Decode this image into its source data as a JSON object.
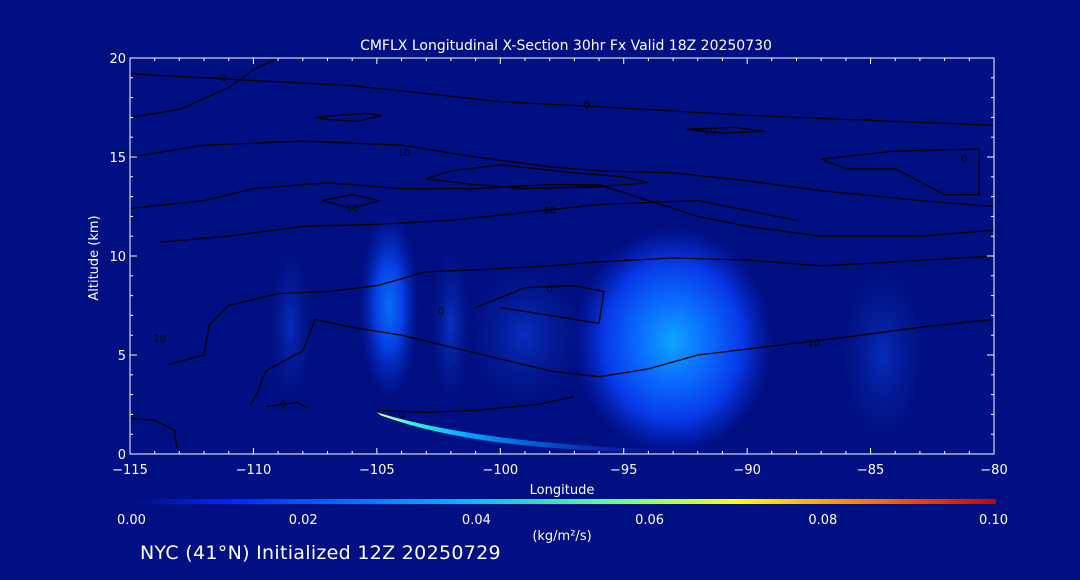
{
  "chart_data": {
    "type": "contour",
    "title": "CMFLX Longitudinal X-Section 30hr  Fx Valid 18Z 20250730",
    "xlabel": "Longitude",
    "ylabel": "Altitude (km)",
    "xlim": [
      -115,
      -80
    ],
    "ylim": [
      0,
      20
    ],
    "x_ticks": [
      -115,
      -110,
      -105,
      -100,
      -95,
      -90,
      -85,
      -80
    ],
    "x_tick_labels": [
      "−115",
      "−110",
      "−105",
      "−100",
      "−95",
      "−90",
      "−85",
      "−80"
    ],
    "y_ticks": [
      0,
      5,
      10,
      15,
      20
    ],
    "y_tick_labels": [
      "0",
      "5",
      "10",
      "15",
      "20"
    ],
    "colorbar": {
      "ticks": [
        "0.00",
        "0.02",
        "0.04",
        "0.06",
        "0.08",
        "0.10"
      ],
      "range": [
        0,
        0.1
      ],
      "units_label": "(kg/m²/s)",
      "colors": [
        "#000f82",
        "#0028ff",
        "#00b4ff",
        "#5aff9a",
        "#ffff00",
        "#ff7800",
        "#c80000"
      ]
    },
    "fill_regions": [
      {
        "lon": -108.5,
        "alt": 6.5,
        "value": 0.008
      },
      {
        "lon": -104.5,
        "alt": 7.5,
        "value": 0.018
      },
      {
        "lon": -102.0,
        "alt": 6.5,
        "value": 0.012
      },
      {
        "lon": -99.0,
        "alt": 6.0,
        "value": 0.01
      },
      {
        "lon": -93.0,
        "alt": 5.7,
        "value": 0.025
      },
      {
        "lon": -84.5,
        "alt": 5.0,
        "value": 0.008
      },
      {
        "lon": -104.0,
        "alt": 1.5,
        "value": 0.05
      }
    ],
    "contour_levels": [
      "0",
      "0",
      "0",
      "0",
      "10",
      "10",
      "10",
      "10",
      "10",
      "0",
      "0"
    ],
    "contour_lines": [
      {
        "level": "0",
        "points": [
          [
            -115,
            19.2
          ],
          [
            -112,
            19.0
          ],
          [
            -109,
            18.8
          ],
          [
            -106,
            18.6
          ],
          [
            -103,
            18.2
          ],
          [
            -100,
            17.8
          ],
          [
            -97,
            17.6
          ],
          [
            -94,
            17.4
          ],
          [
            -90,
            17.1
          ],
          [
            -86,
            16.9
          ],
          [
            -82,
            16.7
          ],
          [
            -80,
            16.6
          ]
        ]
      },
      {
        "level": "0",
        "points": [
          [
            -115,
            17.0
          ],
          [
            -113,
            17.4
          ],
          [
            -111,
            18.5
          ],
          [
            -110,
            19.4
          ],
          [
            -109,
            20.0
          ]
        ]
      },
      {
        "level": "10",
        "points": [
          [
            -115,
            15.0
          ],
          [
            -112,
            15.6
          ],
          [
            -108,
            15.8
          ],
          [
            -104,
            15.6
          ],
          [
            -101,
            15.0
          ],
          [
            -98,
            14.5
          ],
          [
            -96,
            14.3
          ],
          [
            -93,
            14.2
          ],
          [
            -90,
            13.8
          ],
          [
            -87,
            13.3
          ],
          [
            -83,
            12.8
          ],
          [
            -80,
            12.5
          ]
        ]
      },
      {
        "level": "10",
        "points": [
          [
            -115,
            12.4
          ],
          [
            -112,
            12.8
          ],
          [
            -110,
            13.4
          ],
          [
            -107,
            13.7
          ],
          [
            -104,
            13.4
          ],
          [
            -101,
            13.4
          ],
          [
            -98,
            13.6
          ],
          [
            -96,
            13.6
          ],
          [
            -94,
            12.8
          ],
          [
            -92,
            12.0
          ],
          [
            -90,
            11.5
          ],
          [
            -87,
            11.0
          ],
          [
            -83,
            11.0
          ],
          [
            -80,
            11.3
          ]
        ]
      },
      {
        "level": "10",
        "points": [
          [
            -113.8,
            10.7
          ],
          [
            -111,
            11.0
          ],
          [
            -108,
            11.5
          ],
          [
            -105,
            11.6
          ],
          [
            -102,
            11.8
          ],
          [
            -99,
            12.2
          ],
          [
            -96,
            12.6
          ],
          [
            -94,
            12.7
          ],
          [
            -92,
            12.8
          ],
          [
            -90,
            12.3
          ],
          [
            -88,
            11.8
          ]
        ]
      },
      {
        "level": "0",
        "points": [
          [
            -113.5,
            4.5
          ],
          [
            -112,
            5.0
          ],
          [
            -111.8,
            6.5
          ],
          [
            -111,
            7.5
          ],
          [
            -109,
            8.1
          ],
          [
            -107,
            8.2
          ],
          [
            -105,
            8.5
          ],
          [
            -103,
            9.2
          ],
          [
            -101,
            9.3
          ],
          [
            -98,
            9.5
          ],
          [
            -96,
            9.7
          ],
          [
            -93,
            9.9
          ],
          [
            -90,
            9.8
          ],
          [
            -87,
            9.5
          ],
          [
            -84,
            9.7
          ],
          [
            -80,
            10.0
          ]
        ]
      },
      {
        "level": "10",
        "points": [
          [
            -80,
            6.8
          ],
          [
            -83,
            6.4
          ],
          [
            -86,
            5.9
          ],
          [
            -88,
            5.6
          ],
          [
            -90,
            5.3
          ],
          [
            -92,
            5.0
          ],
          [
            -94,
            4.3
          ],
          [
            -96,
            3.9
          ],
          [
            -98,
            4.2
          ],
          [
            -100,
            4.8
          ],
          [
            -102,
            5.4
          ],
          [
            -104,
            6.0
          ],
          [
            -106,
            6.4
          ],
          [
            -107.5,
            6.8
          ],
          [
            -108,
            5.2
          ],
          [
            -109.5,
            4.2
          ],
          [
            -109.8,
            3.2
          ],
          [
            -110.1,
            2.5
          ]
        ]
      },
      {
        "level": "0",
        "points": [
          [
            -101,
            7.4
          ],
          [
            -99,
            8.4
          ],
          [
            -97,
            8.5
          ],
          [
            -95.8,
            8.2
          ],
          [
            -96,
            6.6
          ],
          [
            -98,
            7.0
          ],
          [
            -100,
            7.4
          ]
        ]
      },
      {
        "level": "0",
        "points": [
          [
            -109.5,
            2.4
          ],
          [
            -108.2,
            2.6
          ],
          [
            -107.8,
            2.3
          ]
        ]
      },
      {
        "level": "0",
        "points": [
          [
            -105,
            2.2
          ],
          [
            -103,
            2.1
          ],
          [
            -101,
            2.2
          ],
          [
            -98.5,
            2.5
          ],
          [
            -97,
            2.9
          ]
        ]
      },
      {
        "level": "0",
        "points": [
          [
            -115,
            1.8
          ],
          [
            -114,
            1.7
          ],
          [
            -113.2,
            1.2
          ],
          [
            -113.1,
            0.3
          ]
        ]
      }
    ],
    "closed_contours": [
      {
        "level": "10",
        "points": [
          [
            -102,
            14.3
          ],
          [
            -100,
            14.6
          ],
          [
            -97,
            14.2
          ],
          [
            -95,
            14.0
          ],
          [
            -94,
            13.7
          ],
          [
            -96,
            13.5
          ],
          [
            -99,
            13.4
          ],
          [
            -101,
            13.6
          ],
          [
            -103,
            13.9
          ]
        ]
      },
      {
        "level": "10",
        "points": [
          [
            -87,
            14.9
          ],
          [
            -84,
            15.3
          ],
          [
            -80.6,
            15.4
          ],
          [
            -80.6,
            13.1
          ],
          [
            -82,
            13.1
          ],
          [
            -84,
            14.4
          ],
          [
            -86,
            14.4
          ]
        ]
      },
      {
        "level": "0",
        "points": [
          [
            -107.5,
            17.0
          ],
          [
            -105.5,
            17.2
          ],
          [
            -104.8,
            17.1
          ],
          [
            -105.8,
            16.8
          ],
          [
            -107,
            16.9
          ]
        ]
      },
      {
        "level": "10",
        "points": [
          [
            -92.5,
            16.4
          ],
          [
            -90.5,
            16.5
          ],
          [
            -89.3,
            16.3
          ],
          [
            -91,
            16.2
          ]
        ]
      },
      {
        "level": "0",
        "points": [
          [
            -107.2,
            12.8
          ],
          [
            -106,
            13.1
          ],
          [
            -104.9,
            12.8
          ],
          [
            -106,
            12.4
          ]
        ]
      }
    ],
    "contour_labels": [
      {
        "text": "0",
        "lon": -111.2,
        "alt": 19.0
      },
      {
        "text": "0",
        "lon": -96.5,
        "alt": 17.6
      },
      {
        "text": "10",
        "lon": -91.5,
        "alt": 16.3
      },
      {
        "text": "10",
        "lon": -103.9,
        "alt": 15.2
      },
      {
        "text": "0",
        "lon": -81.2,
        "alt": 14.9
      },
      {
        "text": "10",
        "lon": -106.0,
        "alt": 12.4
      },
      {
        "text": "10",
        "lon": -98.0,
        "alt": 12.3
      },
      {
        "text": "10",
        "lon": -113.8,
        "alt": 5.8
      },
      {
        "text": "0",
        "lon": -102.4,
        "alt": 7.2
      },
      {
        "text": "0",
        "lon": -98.0,
        "alt": 8.3
      },
      {
        "text": "10",
        "lon": -87.3,
        "alt": 5.6
      },
      {
        "text": "0",
        "lon": -108.8,
        "alt": 2.5
      },
      {
        "text": "0",
        "lon": -104.0,
        "alt": 2.0
      }
    ]
  },
  "footer": {
    "caption": "NYC (41°N) Initialized 12Z 20250729"
  }
}
